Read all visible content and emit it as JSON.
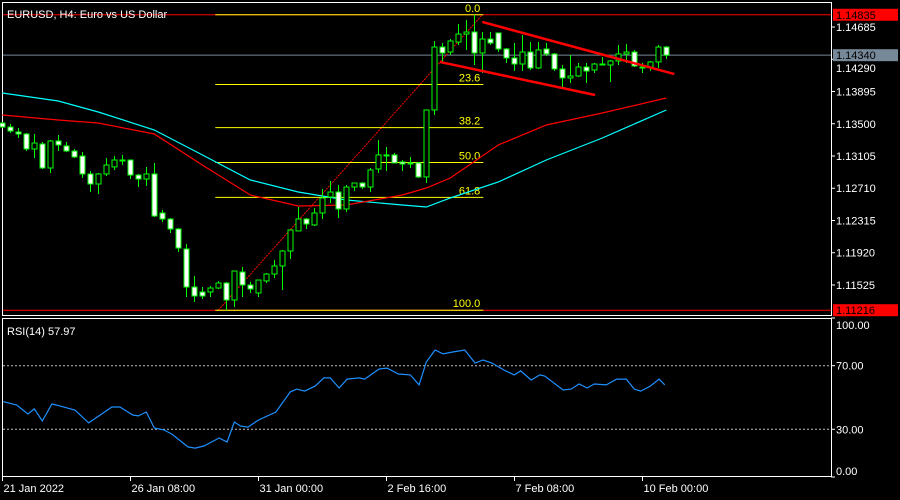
{
  "header": {
    "title": "EURUSD, H4:  Euro vs US Dollar"
  },
  "colors": {
    "background": "#000000",
    "frame": "#ffffff",
    "candle_outline": "#00ff00",
    "bear_fill": "#ffffff",
    "bull_fill": "#000000",
    "fast_ma": "#ff0000",
    "slow_ma": "#00ffff",
    "fib": "#ffff00",
    "channel": "#ff0000",
    "rsi": "#1e90ff",
    "high_low_line": "#ff0000",
    "bid_line": "#778899"
  },
  "price_axis": {
    "ticks": [
      "1.14685",
      "1.14290",
      "1.13895",
      "1.13500",
      "1.13105",
      "1.12710",
      "1.12315",
      "1.11920",
      "1.11525"
    ],
    "high_label": "1.14835",
    "bid_label": "1.14340",
    "low_label": "1.11216"
  },
  "time_axis": [
    {
      "bar": 0,
      "label": "21 Jan 2022"
    },
    {
      "bar": 16,
      "label": "26 Jan 08:00"
    },
    {
      "bar": 32,
      "label": "31 Jan 00:00"
    },
    {
      "bar": 48,
      "label": "2 Feb 16:00"
    },
    {
      "bar": 64,
      "label": "7 Feb 08:00"
    },
    {
      "bar": 80,
      "label": "10 Feb 00:00"
    }
  ],
  "candles_ohlc": [
    [
      1.13509,
      1.13521,
      1.13448,
      1.1346
    ],
    [
      1.1346,
      1.13497,
      1.13387,
      1.13411
    ],
    [
      1.13399,
      1.13448,
      1.13326,
      1.13375
    ],
    [
      1.13375,
      1.13387,
      1.13166,
      1.13191
    ],
    [
      1.13191,
      1.13375,
      1.13081,
      1.13264
    ],
    [
      1.13252,
      1.13277,
      1.12946,
      1.12958
    ],
    [
      1.12958,
      1.13301,
      1.12897,
      1.13289
    ],
    [
      1.13289,
      1.13362,
      1.13166,
      1.1324
    ],
    [
      1.13228,
      1.13277,
      1.13154,
      1.13166
    ],
    [
      1.13166,
      1.13191,
      1.13081,
      1.13093
    ],
    [
      1.13105,
      1.13154,
      1.12836,
      1.12885
    ],
    [
      1.12885,
      1.12921,
      1.12664,
      1.12762
    ],
    [
      1.12762,
      1.12897,
      1.1264,
      1.12885
    ],
    [
      1.12885,
      1.13081,
      1.1286,
      1.12995
    ],
    [
      1.12971,
      1.13105,
      1.12934,
      1.13056
    ],
    [
      1.13056,
      1.13118,
      1.12995,
      1.13056
    ],
    [
      1.13056,
      1.13056,
      1.12823,
      1.12872
    ],
    [
      1.12872,
      1.12885,
      1.12725,
      1.12823
    ],
    [
      1.12823,
      1.12971,
      1.12738,
      1.12885
    ],
    [
      1.12885,
      1.1302,
      1.12358,
      1.1237
    ],
    [
      1.12407,
      1.12444,
      1.12297,
      1.12333
    ],
    [
      1.12333,
      1.12346,
      1.12162,
      1.12211
    ],
    [
      1.12211,
      1.12223,
      1.11929,
      1.11978
    ],
    [
      1.11966,
      1.12027,
      1.11378,
      1.115
    ],
    [
      1.115,
      1.11635,
      1.11316,
      1.1139
    ],
    [
      1.11439,
      1.115,
      1.11353,
      1.1139
    ],
    [
      1.11439,
      1.11512,
      1.11378,
      1.11488
    ],
    [
      1.11488,
      1.11574,
      1.11476,
      1.11549
    ],
    [
      1.11549,
      1.11561,
      1.11216,
      1.11341
    ],
    [
      1.11341,
      1.11696,
      1.11255,
      1.11696
    ],
    [
      1.11684,
      1.11745,
      1.11378,
      1.11525
    ],
    [
      1.11525,
      1.11561,
      1.11427,
      1.11476
    ],
    [
      1.11427,
      1.11586,
      1.11378,
      1.11586
    ],
    [
      1.11574,
      1.11672,
      1.11549,
      1.11659
    ],
    [
      1.11659,
      1.11831,
      1.11611,
      1.11758
    ],
    [
      1.11758,
      1.11954,
      1.11463,
      1.11941
    ],
    [
      1.11941,
      1.12199,
      1.11844,
      1.12199
    ],
    [
      1.12187,
      1.1248,
      1.12187,
      1.12333
    ],
    [
      1.12333,
      1.12346,
      1.12211,
      1.12272
    ],
    [
      1.1226,
      1.12468,
      1.12248,
      1.12407
    ],
    [
      1.12407,
      1.12701,
      1.12333,
      1.12591
    ],
    [
      1.12603,
      1.12799,
      1.12529,
      1.12664
    ],
    [
      1.12664,
      1.1275,
      1.12346,
      1.12456
    ],
    [
      1.12456,
      1.1275,
      1.12419,
      1.12725
    ],
    [
      1.12725,
      1.12774,
      1.12676,
      1.12774
    ],
    [
      1.12774,
      1.12786,
      1.12701,
      1.12725
    ],
    [
      1.12725,
      1.12958,
      1.12664,
      1.12934
    ],
    [
      1.12946,
      1.13301,
      1.12897,
      1.13118
    ],
    [
      1.13118,
      1.13215,
      1.12921,
      1.13118
    ],
    [
      1.13118,
      1.13142,
      1.1302,
      1.1302
    ],
    [
      1.13032,
      1.13056,
      1.12921,
      1.13007
    ],
    [
      1.1302,
      1.13093,
      1.12958,
      1.1302
    ],
    [
      1.1302,
      1.13032,
      1.12836,
      1.12848
    ],
    [
      1.12848,
      1.13669,
      1.12774,
      1.13669
    ],
    [
      1.13669,
      1.14514,
      1.13607,
      1.1444
    ],
    [
      1.1444,
      1.14489,
      1.14244,
      1.14367
    ],
    [
      1.14379,
      1.14538,
      1.14342,
      1.14514
    ],
    [
      1.14501,
      1.14722,
      1.14465,
      1.14599
    ],
    [
      1.14599,
      1.14771,
      1.14404,
      1.14624
    ],
    [
      1.14624,
      1.14835,
      1.1422,
      1.14367
    ],
    [
      1.14367,
      1.14624,
      1.14122,
      1.14538
    ],
    [
      1.14538,
      1.14624,
      1.14465,
      1.14489
    ],
    [
      1.14612,
      1.14612,
      1.14379,
      1.14416
    ],
    [
      1.14416,
      1.14428,
      1.14244,
      1.14306
    ],
    [
      1.14306,
      1.14489,
      1.14146,
      1.14232
    ],
    [
      1.14232,
      1.14587,
      1.14146,
      1.14379
    ],
    [
      1.14379,
      1.14501,
      1.14159,
      1.14183
    ],
    [
      1.14183,
      1.14501,
      1.14171,
      1.14404
    ],
    [
      1.14416,
      1.14489,
      1.1433,
      1.14355
    ],
    [
      1.14355,
      1.14367,
      1.14146,
      1.14171
    ],
    [
      1.14171,
      1.1422,
      1.1395,
      1.14061
    ],
    [
      1.14061,
      1.14342,
      1.13999,
      1.14085
    ],
    [
      1.14085,
      1.14244,
      1.14073,
      1.14195
    ],
    [
      1.14195,
      1.14244,
      1.13999,
      1.14146
    ],
    [
      1.14159,
      1.14244,
      1.14122,
      1.14232
    ],
    [
      1.1422,
      1.14318,
      1.1422,
      1.14232
    ],
    [
      1.1422,
      1.14281,
      1.14012,
      1.14269
    ],
    [
      1.14269,
      1.14465,
      1.1422,
      1.14355
    ],
    [
      1.14355,
      1.14477,
      1.14244,
      1.14379
    ],
    [
      1.14379,
      1.14404,
      1.14195,
      1.14208
    ],
    [
      1.14195,
      1.14244,
      1.14122,
      1.14183
    ],
    [
      1.14195,
      1.14269,
      1.14146,
      1.14257
    ],
    [
      1.14257,
      1.14465,
      1.14183,
      1.1444
    ],
    [
      1.1444,
      1.14452,
      1.14293,
      1.1434
    ]
  ],
  "fast_ma": [
    [
      0,
      1.13607
    ],
    [
      7,
      1.13546
    ],
    [
      12,
      1.13509
    ],
    [
      19,
      1.13375
    ],
    [
      25,
      1.12995
    ],
    [
      31,
      1.12627
    ],
    [
      37,
      1.12493
    ],
    [
      43,
      1.12505
    ],
    [
      50,
      1.12627
    ],
    [
      53,
      1.12713
    ],
    [
      56,
      1.12836
    ],
    [
      62,
      1.1324
    ],
    [
      68,
      1.13485
    ],
    [
      75,
      1.13632
    ],
    [
      83,
      1.13816
    ]
  ],
  "slow_ma": [
    [
      0,
      1.13877
    ],
    [
      7,
      1.13779
    ],
    [
      12,
      1.13644
    ],
    [
      19,
      1.13424
    ],
    [
      25,
      1.13118
    ],
    [
      31,
      1.12811
    ],
    [
      37,
      1.12664
    ],
    [
      43,
      1.12566
    ],
    [
      50,
      1.12505
    ],
    [
      53,
      1.1248
    ],
    [
      56,
      1.12591
    ],
    [
      62,
      1.12786
    ],
    [
      68,
      1.13056
    ],
    [
      75,
      1.13326
    ],
    [
      83,
      1.13669
    ]
  ],
  "fibonacci": {
    "from": {
      "bar": 27,
      "price": 1.11216
    },
    "to": {
      "bar": 60,
      "price": 1.14835
    },
    "levels": [
      {
        "ratio": 0.0,
        "label": "0.0"
      },
      {
        "ratio": 0.236,
        "label": "23.6"
      },
      {
        "ratio": 0.382,
        "label": "38.2"
      },
      {
        "ratio": 0.5,
        "label": "50.0"
      },
      {
        "ratio": 0.618,
        "label": "61.8"
      },
      {
        "ratio": 1.0,
        "label": "100.0"
      }
    ]
  },
  "channel_lines": [
    {
      "from": {
        "bar": 60,
        "price": 1.14747
      },
      "to": {
        "bar": 84,
        "price": 1.14109
      }
    },
    {
      "from": {
        "bar": 54.7,
        "price": 1.14257
      },
      "to": {
        "bar": 74.1,
        "price": 1.13852
      }
    }
  ],
  "rsi": {
    "label": "RSI(14) 57.97",
    "levels": [
      70,
      30
    ],
    "axis_labels": [
      {
        "v": 100,
        "label": "100.00"
      },
      {
        "v": 70,
        "label": "70.00"
      },
      {
        "v": 30,
        "label": "30.00"
      },
      {
        "v": 0,
        "label": "0.00"
      }
    ],
    "points": [
      [
        0.1,
        47.4
      ],
      [
        1.8,
        45.3
      ],
      [
        3.2,
        39.6
      ],
      [
        4,
        42.8
      ],
      [
        5,
        35.2
      ],
      [
        6.2,
        45.9
      ],
      [
        7.2,
        44.7
      ],
      [
        9.1,
        42
      ],
      [
        10.8,
        34
      ],
      [
        13.7,
        44
      ],
      [
        14.7,
        44
      ],
      [
        16.3,
        39
      ],
      [
        17,
        38.4
      ],
      [
        18,
        40.9
      ],
      [
        19,
        30.8
      ],
      [
        20.2,
        29.6
      ],
      [
        21.2,
        27
      ],
      [
        23.2,
        18.9
      ],
      [
        24.1,
        18.2
      ],
      [
        25.2,
        19.5
      ],
      [
        27.1,
        24.5
      ],
      [
        28.1,
        22
      ],
      [
        29,
        34.6
      ],
      [
        29.8,
        32
      ],
      [
        30.7,
        31.4
      ],
      [
        32,
        35.8
      ],
      [
        34.2,
        40.9
      ],
      [
        36,
        53.5
      ],
      [
        36.8,
        55.3
      ],
      [
        37.8,
        54
      ],
      [
        39.1,
        57.2
      ],
      [
        40.2,
        62.3
      ],
      [
        41,
        62.3
      ],
      [
        42.1,
        56
      ],
      [
        43.1,
        61.6
      ],
      [
        44.6,
        62.3
      ],
      [
        45.3,
        61.6
      ],
      [
        47.1,
        67.9
      ],
      [
        48.1,
        68.5
      ],
      [
        49.5,
        64.8
      ],
      [
        51,
        64.2
      ],
      [
        52.1,
        57.9
      ],
      [
        53,
        72.3
      ],
      [
        54.1,
        79.9
      ],
      [
        55.1,
        77.4
      ],
      [
        56.3,
        78.6
      ],
      [
        57.8,
        79.9
      ],
      [
        59.1,
        71.7
      ],
      [
        60.1,
        73.6
      ],
      [
        61.2,
        71.7
      ],
      [
        62.7,
        67.3
      ],
      [
        64,
        64.2
      ],
      [
        64.8,
        66.7
      ],
      [
        66.1,
        61
      ],
      [
        67.2,
        64.2
      ],
      [
        67.8,
        63.5
      ],
      [
        70.1,
        54.7
      ],
      [
        71.1,
        55.3
      ],
      [
        72.1,
        58.5
      ],
      [
        73.1,
        56
      ],
      [
        74,
        58.5
      ],
      [
        75.5,
        57.9
      ],
      [
        76.8,
        61.6
      ],
      [
        78,
        61.6
      ],
      [
        79,
        55.3
      ],
      [
        79.8,
        54
      ],
      [
        81,
        57.2
      ],
      [
        82.1,
        61.6
      ],
      [
        82.8,
        57.97
      ]
    ]
  }
}
